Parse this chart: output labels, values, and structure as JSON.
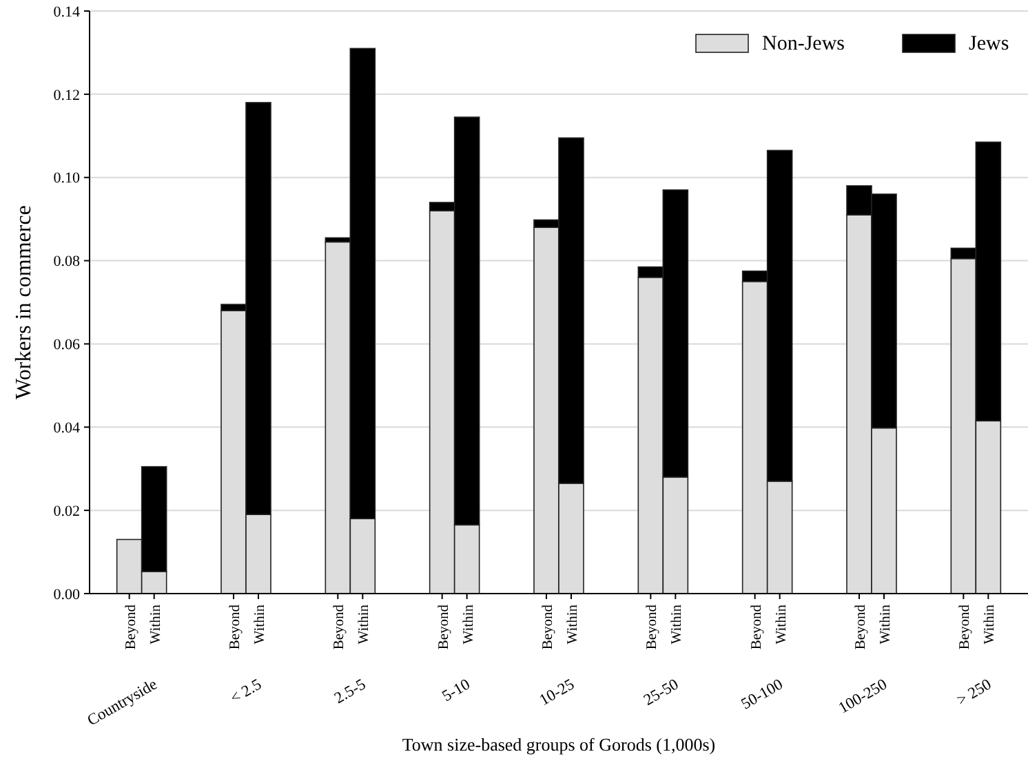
{
  "chart_data": {
    "type": "bar",
    "stacked": true,
    "xlabel": "Town size-based groups of Gorods (1,000s)",
    "ylabel": "Workers in commerce",
    "categories": [
      "Beyond",
      "Within",
      "Beyond",
      "Within",
      "Beyond",
      "Within",
      "Beyond",
      "Within",
      "Beyond",
      "Within",
      "Beyond",
      "Within",
      "Beyond",
      "Within",
      "Beyond",
      "Within",
      "Beyond",
      "Within"
    ],
    "annotations": [
      "Countryside",
      "< 2.5",
      "2.5-5",
      "5-10",
      "10-25",
      "25-50",
      "50-100",
      "100-250",
      "> 250"
    ],
    "series": [
      {
        "name": "Non-Jews",
        "color": "#dddddd",
        "values": [
          0.013,
          0.0053,
          0.068,
          0.019,
          0.0845,
          0.018,
          0.092,
          0.0165,
          0.088,
          0.0265,
          0.076,
          0.028,
          0.075,
          0.027,
          0.091,
          0.0398,
          0.0805,
          0.0415
        ]
      },
      {
        "name": "Jews",
        "color": "#000000",
        "values": [
          0,
          0.0252,
          0.0015,
          0.099,
          0.001,
          0.113,
          0.002,
          0.098,
          0.0018,
          0.083,
          0.0025,
          0.069,
          0.0025,
          0.0795,
          0.007,
          0.0562,
          0.0025,
          0.067
        ]
      }
    ],
    "ylim": [
      0,
      0.14
    ],
    "yticks": [
      {
        "value": 0,
        "label": "0.00"
      },
      {
        "value": 0.02,
        "label": "0.02"
      },
      {
        "value": 0.04,
        "label": "0.04"
      },
      {
        "value": 0.06,
        "label": "0.06"
      },
      {
        "value": 0.08,
        "label": "0.08"
      },
      {
        "value": 0.1,
        "label": "0.10"
      },
      {
        "value": 0.12,
        "label": "0.12"
      },
      {
        "value": 0.14,
        "label": "0.14"
      }
    ],
    "grid": "y",
    "legend": "top right"
  }
}
